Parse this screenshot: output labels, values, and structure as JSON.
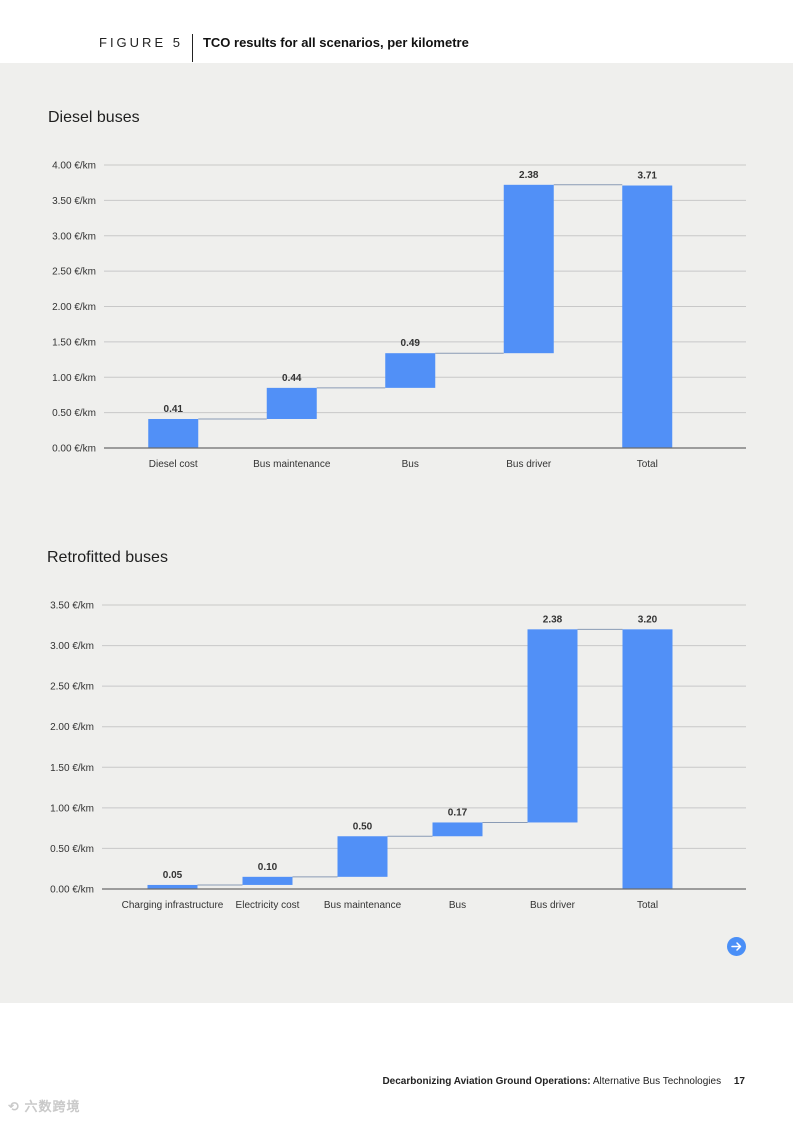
{
  "figure": {
    "label": "FIGURE 5",
    "title": "TCO results for all scenarios, per kilometre"
  },
  "chart_data": [
    {
      "type": "bar",
      "subtype": "waterfall",
      "title": "Diesel buses",
      "xlabel": "",
      "ylabel": "",
      "categories": [
        "Diesel cost",
        "Bus maintenance",
        "Bus",
        "Bus driver",
        "Total"
      ],
      "values": [
        0.41,
        0.44,
        0.49,
        2.38,
        3.71
      ],
      "data_labels": [
        "0.41",
        "0.44",
        "0.49",
        "2.38",
        "3.71"
      ],
      "ylim": [
        0,
        4.0
      ],
      "yticks": [
        0,
        0.5,
        1.0,
        1.5,
        2.0,
        2.5,
        3.0,
        3.5,
        4.0
      ],
      "ytick_labels": [
        "0.00 €/km",
        "0.50 €/km",
        "1.00 €/km",
        "1.50 €/km",
        "2.00 €/km",
        "2.50 €/km",
        "3.00 €/km",
        "3.50 €/km",
        "4.00 €/km"
      ],
      "grid": true,
      "bar_color": "#5190f7"
    },
    {
      "type": "bar",
      "subtype": "waterfall",
      "title": "Retrofitted buses",
      "xlabel": "",
      "ylabel": "",
      "categories": [
        "Charging infrastructure",
        "Electricity cost",
        "Bus maintenance",
        "Bus",
        "Bus driver",
        "Total"
      ],
      "values": [
        0.05,
        0.1,
        0.5,
        0.17,
        2.38,
        3.2
      ],
      "data_labels": [
        "0.05",
        "0.10",
        "0.50",
        "0.17",
        "2.38",
        "3.20"
      ],
      "ylim": [
        0,
        3.5
      ],
      "yticks": [
        0,
        0.5,
        1.0,
        1.5,
        2.0,
        2.5,
        3.0,
        3.5
      ],
      "ytick_labels": [
        "0.00 €/km",
        "0.50 €/km",
        "1.00 €/km",
        "1.50 €/km",
        "2.00 €/km",
        "2.50 €/km",
        "3.00 €/km",
        "3.50 €/km"
      ],
      "grid": true,
      "bar_color": "#5190f7"
    }
  ],
  "navigation": {
    "next_icon": "arrow-right-circle-icon"
  },
  "footer": {
    "report_title": "Decarbonizing Aviation Ground Operations:",
    "subtitle": "Alternative Bus Technologies",
    "page_number": "17"
  },
  "watermark": {
    "text": "六数跨境"
  },
  "colors": {
    "panel_bg": "#efefed",
    "bar": "#5190f7",
    "grid": "#c8c8c8",
    "axis": "#6b6b6b"
  }
}
